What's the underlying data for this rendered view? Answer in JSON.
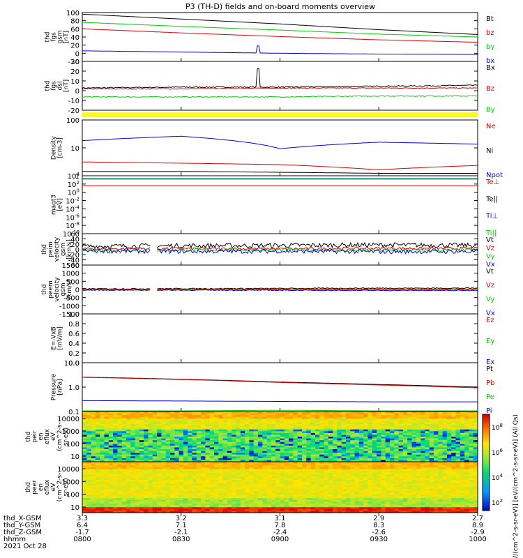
{
  "title": "P3 (TH-D) fields and on-board moments overview",
  "colors": {
    "black": "#000000",
    "red": "#dd0000",
    "green": "#00cc00",
    "blue": "#0000dd",
    "yellow": "#ffff00"
  },
  "chart_data": [
    {
      "type": "line",
      "id": "fgs-gsm",
      "ylabel": [
        "thd",
        "fgs",
        "gsm",
        "[nT]"
      ],
      "yticks": [
        "100",
        "80",
        "60",
        "40",
        "20",
        "0",
        "-20"
      ],
      "ylim": [
        -20,
        100
      ],
      "legend": [
        {
          "name": "Bt",
          "color": "black"
        },
        {
          "name": "bz",
          "color": "red"
        },
        {
          "name": "by",
          "color": "green"
        },
        {
          "name": "bx",
          "color": "blue"
        }
      ],
      "x": [
        "0800",
        "0830",
        "0900",
        "0930",
        "1000"
      ],
      "series": [
        {
          "name": "Bt",
          "color": "black",
          "values": [
            96,
            84,
            72,
            58,
            46
          ]
        },
        {
          "name": "bz",
          "color": "red",
          "values": [
            60,
            50,
            41,
            33,
            27
          ]
        },
        {
          "name": "by",
          "color": "green",
          "values": [
            76,
            66,
            57,
            47,
            40
          ]
        },
        {
          "name": "bx",
          "color": "blue",
          "values": [
            6,
            3,
            0,
            -2,
            -3
          ]
        }
      ]
    },
    {
      "type": "line",
      "id": "fgs-dsl",
      "ylabel": [
        "thd",
        "fgs",
        "dsl",
        "[nT]"
      ],
      "yticks": [
        "30",
        "20",
        "10",
        "0",
        "-10",
        "-20"
      ],
      "ylim": [
        -25,
        30
      ],
      "legend": [
        {
          "name": "Bx",
          "color": "black"
        },
        {
          "name": "Bz",
          "color": "red"
        },
        {
          "name": "By",
          "color": "green"
        }
      ],
      "x": [
        "0800",
        "0830",
        "0900",
        "0930",
        "1000"
      ],
      "series": [
        {
          "name": "Bx",
          "color": "black",
          "values": [
            0,
            1,
            1,
            2,
            3
          ]
        },
        {
          "name": "Bz",
          "color": "red",
          "values": [
            -1,
            -1,
            0,
            0,
            0
          ]
        },
        {
          "name": "By",
          "color": "green",
          "values": [
            -10,
            -10,
            -10,
            -9,
            -9
          ]
        }
      ]
    },
    {
      "type": "line",
      "id": "density",
      "ylabel": [
        "Density",
        "[cm-3]"
      ],
      "yticks": [
        "100",
        "10",
        "1"
      ],
      "ylim": [
        0.3,
        200
      ],
      "yscale": "log",
      "legend": [
        {
          "name": "Ne",
          "color": "red"
        },
        {
          "name": "Ni",
          "color": "black"
        },
        {
          "name": "Npot",
          "color": "blue"
        }
      ],
      "x": [
        "0800",
        "0830",
        "0900",
        "0930",
        "1000"
      ],
      "series": [
        {
          "name": "Npot",
          "color": "blue",
          "values": [
            18,
            30,
            7,
            15,
            12
          ]
        },
        {
          "name": "Ne",
          "color": "red",
          "values": [
            1.5,
            1.3,
            1.1,
            0.6,
            1.0
          ]
        },
        {
          "name": "Ni",
          "color": "black",
          "values": [
            0.5,
            0.5,
            0.45,
            0.4,
            0.4
          ]
        }
      ]
    },
    {
      "type": "line",
      "id": "temperature",
      "ylabel": [
        "magt3",
        "[eV]"
      ],
      "yticks": [
        "10^4",
        "10^2",
        "10^0",
        "10^-2",
        "10^-4",
        "10^-6",
        "10^-8",
        "10^-10"
      ],
      "yscale": "log",
      "legend": [
        {
          "name": "Te⊥",
          "color": "red"
        },
        {
          "name": "Te||",
          "color": "black"
        },
        {
          "name": "Ti⊥",
          "color": "blue"
        },
        {
          "name": "Ti||",
          "color": "green"
        }
      ],
      "x": [
        "0800",
        "0830",
        "0900",
        "0930",
        "1000"
      ],
      "series": [
        {
          "name": "Ti⊥",
          "color": "blue",
          "values": [
            2000,
            2000,
            2000,
            2000,
            2000
          ]
        },
        {
          "name": "Ti||",
          "color": "green",
          "values": [
            1500,
            1500,
            1500,
            1500,
            1500
          ]
        },
        {
          "name": "Te⊥",
          "color": "red",
          "values": [
            40,
            40,
            40,
            40,
            40
          ]
        }
      ]
    },
    {
      "type": "line",
      "id": "peim-velocity",
      "ylabel": [
        "thd",
        "peim",
        "velocity",
        "gsm",
        "[km/s]"
      ],
      "yticks": [
        "60",
        "40",
        "20",
        "0",
        "-20",
        "-40",
        "-60"
      ],
      "ylim": [
        -60,
        60
      ],
      "legend": [
        {
          "name": "Vt",
          "color": "black"
        },
        {
          "name": "Vz",
          "color": "red"
        },
        {
          "name": "Vy",
          "color": "green"
        },
        {
          "name": "Vx",
          "color": "blue"
        }
      ],
      "x": [
        "0800",
        "0830",
        "0900",
        "0930",
        "1000"
      ],
      "series": [
        {
          "name": "Vt",
          "color": "black",
          "values": [
            12,
            14,
            15,
            17,
            15
          ]
        },
        {
          "name": "Vz",
          "color": "red",
          "values": [
            2,
            3,
            2,
            4,
            3
          ]
        },
        {
          "name": "Vy",
          "color": "green",
          "values": [
            -2,
            -3,
            -2,
            -4,
            -3
          ]
        },
        {
          "name": "Vx",
          "color": "blue",
          "values": [
            -6,
            -8,
            -7,
            -9,
            -8
          ]
        }
      ]
    },
    {
      "type": "line",
      "id": "peem-velocity",
      "ylabel": [
        "thd",
        "peem",
        "velocity",
        "gsm",
        "[km/s]"
      ],
      "yticks": [
        "1500",
        "1000",
        "500",
        "0",
        "-500",
        "-1000",
        "-1500"
      ],
      "ylim": [
        -1500,
        1500
      ],
      "legend": [
        {
          "name": "Vt",
          "color": "black"
        },
        {
          "name": "Vz",
          "color": "red"
        },
        {
          "name": "Vy",
          "color": "green"
        },
        {
          "name": "Vx",
          "color": "blue"
        }
      ],
      "x": [
        "0800",
        "0830",
        "0900",
        "0930",
        "1000"
      ],
      "series": [
        {
          "name": "Vt",
          "color": "black",
          "values": [
            40,
            50,
            60,
            80,
            80
          ]
        },
        {
          "name": "Vz",
          "color": "red",
          "values": [
            0,
            10,
            10,
            20,
            20
          ]
        },
        {
          "name": "Vy",
          "color": "green",
          "values": [
            -20,
            -10,
            -20,
            -20,
            -10
          ]
        },
        {
          "name": "Vx",
          "color": "blue",
          "values": [
            -40,
            -40,
            -50,
            -60,
            -60
          ]
        }
      ]
    },
    {
      "type": "line",
      "id": "efield",
      "ylabel": [
        "E=-VxB",
        "[mV/m]"
      ],
      "yticks": [
        "1.0",
        "0.8",
        "0.6",
        "0.4",
        "0.2",
        "0.0"
      ],
      "ylim": [
        0,
        1
      ],
      "legend": [
        {
          "name": "Ez",
          "color": "red"
        },
        {
          "name": "Ey",
          "color": "green"
        },
        {
          "name": "Ex",
          "color": "blue"
        }
      ],
      "x": [
        "0800",
        "0830",
        "0900",
        "0930",
        "1000"
      ],
      "series": []
    },
    {
      "type": "line",
      "id": "pressure",
      "ylabel": [
        "Pressure",
        "[nPa]"
      ],
      "yticks": [
        "10.0",
        "1.0",
        "0.1"
      ],
      "ylim": [
        0.06,
        20
      ],
      "yscale": "log",
      "legend": [
        {
          "name": "Pt",
          "color": "black"
        },
        {
          "name": "Pb",
          "color": "red"
        },
        {
          "name": "Pe",
          "color": "green"
        },
        {
          "name": "Pi",
          "color": "blue"
        }
      ],
      "x": [
        "0800",
        "0830",
        "0900",
        "0930",
        "1000"
      ],
      "series": [
        {
          "name": "Pt",
          "color": "black",
          "values": [
            3.6,
            2.8,
            2.0,
            1.5,
            1.1
          ]
        },
        {
          "name": "Pb",
          "color": "red",
          "values": [
            3.5,
            2.7,
            1.9,
            1.4,
            1.0
          ]
        },
        {
          "name": "Pi",
          "color": "blue",
          "values": [
            0.22,
            0.21,
            0.2,
            0.19,
            0.19
          ]
        },
        {
          "name": "Pe",
          "color": "green",
          "values": [
            0.065,
            0.065,
            0.07,
            0.065,
            0.065
          ]
        }
      ]
    },
    {
      "type": "heatmap",
      "id": "peir-spectrogram",
      "ylabel": [
        "thd",
        "peir",
        "en",
        "eflux",
        "eV",
        "(cm^2-s-",
        "sr-eV)"
      ],
      "yticks": [
        "10000",
        "1000",
        "100",
        "10"
      ],
      "yscale": "log"
    },
    {
      "type": "heatmap",
      "id": "peer-spectrogram",
      "ylabel": [
        "thd",
        "peer",
        "en",
        "eflux",
        "eV",
        "(cm^2-s-",
        "sr-eV)"
      ],
      "yticks": [
        "10000",
        "1000",
        "100",
        "10"
      ],
      "yscale": "log"
    }
  ],
  "colorbar": {
    "ticks": [
      "10^8",
      "10^6",
      "10^4",
      "10^2"
    ],
    "label": "[eV/(cm^2-s-sr-eV)] [eV/(cm^2-s-sr-eV)] (All Qs)"
  },
  "xaxis": {
    "tick_labels": [
      "3.3",
      "3.2",
      "3.1",
      "2.9",
      "2.7"
    ],
    "rows": [
      {
        "label": "thd_X-GSM",
        "values": [
          "3.3",
          "3.2",
          "3.1",
          "2.9",
          "2.7"
        ]
      },
      {
        "label": "thd_Y-GSM",
        "values": [
          "6.4",
          "7.1",
          "7.8",
          "8.3",
          "8.9"
        ]
      },
      {
        "label": "thd_Z-GSM",
        "values": [
          "-1.7",
          "-2.1",
          "-2.4",
          "-2.6",
          "-2.9"
        ]
      },
      {
        "label": "hhmm",
        "values": [
          "0800",
          "0830",
          "0900",
          "0930",
          "1000"
        ]
      }
    ],
    "date": "2021 Oct 28"
  }
}
